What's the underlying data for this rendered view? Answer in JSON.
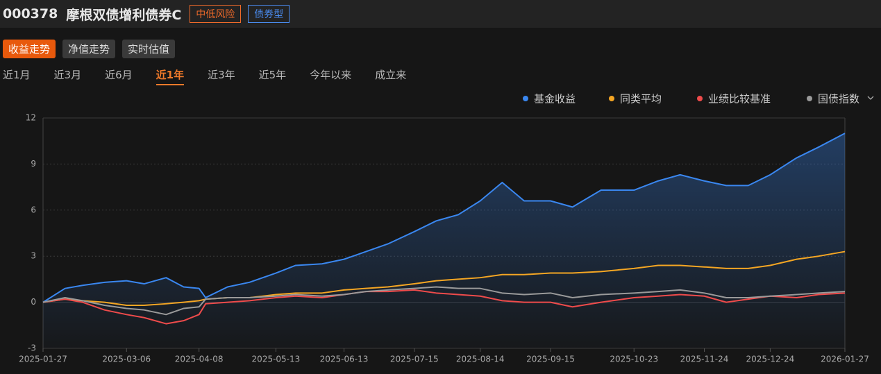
{
  "header": {
    "code": "000378",
    "name": "摩根双债增利债券C",
    "tags": [
      "中低风险",
      "债券型"
    ]
  },
  "tabs": [
    {
      "label": "收益走势",
      "active": true
    },
    {
      "label": "净值走势",
      "active": false
    },
    {
      "label": "实时估值",
      "active": false
    }
  ],
  "periods": [
    {
      "label": "近1月",
      "active": false
    },
    {
      "label": "近3月",
      "active": false
    },
    {
      "label": "近6月",
      "active": false
    },
    {
      "label": "近1年",
      "active": true
    },
    {
      "label": "近3年",
      "active": false
    },
    {
      "label": "近5年",
      "active": false
    },
    {
      "label": "今年以来",
      "active": false
    },
    {
      "label": "成立来",
      "active": false
    }
  ],
  "chart_data": {
    "type": "line",
    "legend": "top-right",
    "grid": true,
    "x": [
      "2025-01-27",
      "2025-02-06",
      "2025-02-14",
      "2025-02-24",
      "2025-03-06",
      "2025-03-14",
      "2025-03-24",
      "2025-04-01",
      "2025-04-08",
      "2025-04-11",
      "2025-04-21",
      "2025-05-01",
      "2025-05-13",
      "2025-05-22",
      "2025-06-03",
      "2025-06-13",
      "2025-06-23",
      "2025-07-03",
      "2025-07-15",
      "2025-07-25",
      "2025-08-04",
      "2025-08-14",
      "2025-08-24",
      "2025-09-03",
      "2025-09-15",
      "2025-09-25",
      "2025-10-08",
      "2025-10-23",
      "2025-11-03",
      "2025-11-13",
      "2025-11-24",
      "2025-12-04",
      "2025-12-14",
      "2025-12-24",
      "2026-01-05",
      "2026-01-15",
      "2026-01-27"
    ],
    "xlim": [
      "2025-01-27",
      "2026-01-27"
    ],
    "xticks": [
      "2025-01-27",
      "2025-03-06",
      "2025-04-08",
      "2025-05-13",
      "2025-06-13",
      "2025-07-15",
      "2025-08-14",
      "2025-09-15",
      "2025-10-23",
      "2025-11-24",
      "2025-12-24",
      "2026-01-27"
    ],
    "ylim": [
      -3,
      12
    ],
    "yticks": [
      -3,
      0,
      3,
      6,
      9,
      12
    ],
    "series": [
      {
        "name": "基金收益",
        "color": "#3a87f0",
        "values": [
          0,
          0.9,
          1.1,
          1.3,
          1.4,
          1.2,
          1.6,
          1.0,
          0.9,
          0.3,
          1.0,
          1.3,
          1.9,
          2.4,
          2.5,
          2.8,
          3.3,
          3.8,
          4.6,
          5.3,
          5.7,
          6.6,
          7.8,
          6.6,
          6.6,
          6.2,
          7.3,
          7.3,
          7.9,
          8.3,
          7.9,
          7.6,
          7.6,
          8.3,
          9.4,
          10.1,
          11.0
        ]
      },
      {
        "name": "同类平均",
        "color": "#f5a623",
        "values": [
          0,
          0.2,
          0.1,
          0.0,
          -0.2,
          -0.2,
          -0.1,
          0.0,
          0.1,
          0.2,
          0.3,
          0.3,
          0.5,
          0.6,
          0.6,
          0.8,
          0.9,
          1.0,
          1.2,
          1.4,
          1.5,
          1.6,
          1.8,
          1.8,
          1.9,
          1.9,
          2.0,
          2.2,
          2.4,
          2.4,
          2.3,
          2.2,
          2.2,
          2.4,
          2.8,
          3.0,
          3.3
        ]
      },
      {
        "name": "业绩比较基准",
        "color": "#ef4b4b",
        "values": [
          0,
          0.2,
          0.0,
          -0.5,
          -0.8,
          -1.0,
          -1.4,
          -1.2,
          -0.8,
          -0.1,
          0.0,
          0.1,
          0.3,
          0.4,
          0.3,
          0.5,
          0.7,
          0.7,
          0.8,
          0.6,
          0.5,
          0.4,
          0.1,
          0.0,
          0.0,
          -0.3,
          0.0,
          0.3,
          0.4,
          0.5,
          0.4,
          0.0,
          0.2,
          0.4,
          0.3,
          0.5,
          0.6
        ]
      },
      {
        "name": "国债指数",
        "color": "#9a9a9a",
        "values": [
          0,
          0.3,
          0.1,
          -0.2,
          -0.4,
          -0.5,
          -0.8,
          -0.4,
          -0.3,
          0.2,
          0.3,
          0.3,
          0.4,
          0.5,
          0.4,
          0.5,
          0.7,
          0.8,
          0.9,
          1.0,
          0.9,
          0.9,
          0.6,
          0.5,
          0.6,
          0.3,
          0.5,
          0.6,
          0.7,
          0.8,
          0.6,
          0.3,
          0.3,
          0.4,
          0.5,
          0.6,
          0.7
        ]
      }
    ]
  }
}
